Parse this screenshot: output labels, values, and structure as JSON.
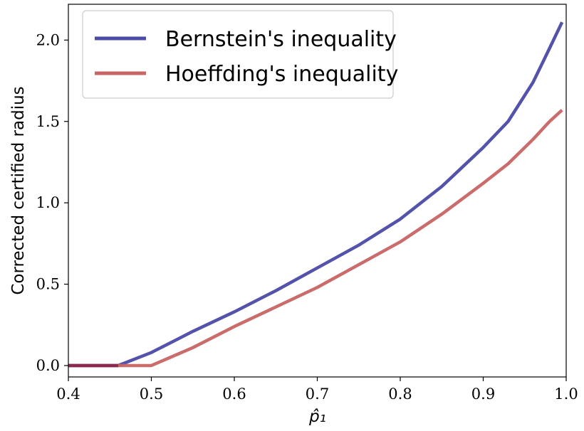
{
  "chart_data": {
    "type": "line",
    "xlabel": "p̂₁",
    "ylabel": "Corrected certified radius",
    "xlim": [
      0.4,
      1.0
    ],
    "ylim": [
      -0.07,
      2.22
    ],
    "xticks": [
      "0.4",
      "0.5",
      "0.6",
      "0.7",
      "0.8",
      "0.9",
      "1.0"
    ],
    "yticks": [
      "0.0",
      "0.5",
      "1.0",
      "1.5",
      "2.0"
    ],
    "grid": false,
    "legend_position": "top-left",
    "series": [
      {
        "name": "Bernstein's inequality",
        "color": "#4a4aa8",
        "x": [
          0.4,
          0.46,
          0.5,
          0.55,
          0.6,
          0.65,
          0.7,
          0.75,
          0.8,
          0.85,
          0.9,
          0.93,
          0.96,
          0.98,
          0.995
        ],
        "y": [
          0.0,
          0.0,
          0.08,
          0.21,
          0.33,
          0.46,
          0.6,
          0.74,
          0.9,
          1.1,
          1.34,
          1.5,
          1.74,
          1.95,
          2.11
        ]
      },
      {
        "name": "Hoeffding's inequality",
        "color": "#c86464",
        "x": [
          0.4,
          0.46,
          0.5,
          0.55,
          0.6,
          0.65,
          0.7,
          0.75,
          0.8,
          0.85,
          0.9,
          0.93,
          0.96,
          0.98,
          0.995
        ],
        "y": [
          0.0,
          0.0,
          0.0,
          0.11,
          0.24,
          0.36,
          0.48,
          0.62,
          0.76,
          0.93,
          1.12,
          1.24,
          1.39,
          1.5,
          1.57
        ]
      }
    ],
    "overlap_color": "#8a2a50"
  }
}
